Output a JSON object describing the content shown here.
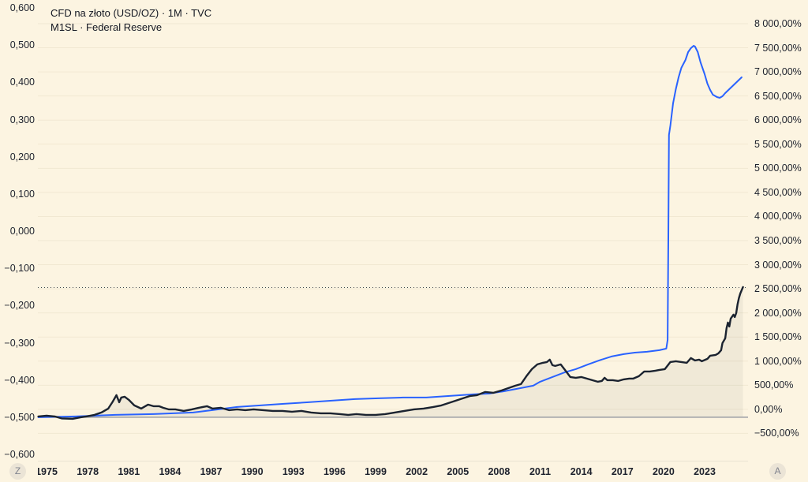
{
  "legend": {
    "line1": "CFD na złoto (USD/OZ) · 1M · TVC",
    "line2": "M1SL · Federal Reserve"
  },
  "scale_buttons": {
    "left": "Z",
    "right": "A"
  },
  "colors": {
    "background": "#fcf4e1",
    "grid": "#f1e8d2",
    "axis_text": "#1e222d",
    "gold_line": "#1b2330",
    "gold_fill": "rgba(25,32,45,0.05)",
    "m1_line": "#2962ff",
    "baseline": "#9b9ea5",
    "last_value_line": "#40434a"
  },
  "chart_data": {
    "type": "line",
    "title": "CFD na złoto (USD/OZ) · 1M · TVC",
    "subtitle": "M1SL · Federal Reserve",
    "grid": true,
    "legend_position": "top-left",
    "x_axis": {
      "ticks": [
        "1975",
        "1978",
        "1981",
        "1984",
        "1987",
        "1990",
        "1993",
        "1996",
        "1999",
        "2002",
        "2005",
        "2008",
        "2011",
        "2014",
        "2017",
        "2020",
        "2023"
      ]
    },
    "left_axis": {
      "ticks": [
        "0,600",
        "0,500",
        "0,400",
        "0,300",
        "0,200",
        "0,100",
        "0,000",
        "−0,100",
        "−0,200",
        "−0,300",
        "−0,400",
        "−0,500",
        "−0,600"
      ],
      "range": [
        -0.6,
        0.6
      ]
    },
    "right_axis": {
      "ticks": [
        "8 000,00%",
        "7 500,00%",
        "7 000,00%",
        "6 500,00%",
        "6 000,00%",
        "5 500,00%",
        "5 000,00%",
        "4 500,00%",
        "4 000,00%",
        "3 500,00%",
        "3 000,00%",
        "2 500,00%",
        "2 000,00%",
        "1 500,00%",
        "1 000,00%",
        "500,00%",
        "0,00%",
        "−500,00%"
      ],
      "range_pct": [
        -500,
        8000
      ]
    },
    "baseline_left_value": -0.5,
    "last_value_pct": 2690,
    "series": [
      {
        "name": "CFD na złoto (USD/OZ)",
        "unit": "percent_change",
        "points": [
          [
            1974.4,
            16
          ],
          [
            1975.0,
            33
          ],
          [
            1975.6,
            16
          ],
          [
            1976.1,
            -25
          ],
          [
            1976.9,
            -33
          ],
          [
            1977.5,
            0
          ],
          [
            1977.9,
            16
          ],
          [
            1978.5,
            49
          ],
          [
            1979.0,
            98
          ],
          [
            1979.5,
            180
          ],
          [
            1979.8,
            311
          ],
          [
            1980.1,
            458
          ],
          [
            1980.3,
            311
          ],
          [
            1980.45,
            409
          ],
          [
            1980.7,
            425
          ],
          [
            1981.0,
            360
          ],
          [
            1981.4,
            245
          ],
          [
            1981.9,
            180
          ],
          [
            1982.4,
            262
          ],
          [
            1982.8,
            229
          ],
          [
            1983.2,
            229
          ],
          [
            1983.5,
            196
          ],
          [
            1983.9,
            164
          ],
          [
            1984.4,
            164
          ],
          [
            1985.0,
            131
          ],
          [
            1985.6,
            164
          ],
          [
            1986.1,
            196
          ],
          [
            1986.7,
            229
          ],
          [
            1987.1,
            180
          ],
          [
            1987.7,
            196
          ],
          [
            1988.3,
            147
          ],
          [
            1988.9,
            164
          ],
          [
            1989.5,
            147
          ],
          [
            1990.1,
            164
          ],
          [
            1990.8,
            147
          ],
          [
            1991.5,
            131
          ],
          [
            1992.2,
            131
          ],
          [
            1992.9,
            115
          ],
          [
            1993.6,
            131
          ],
          [
            1994.3,
            98
          ],
          [
            1995.0,
            82
          ],
          [
            1995.7,
            82
          ],
          [
            1996.4,
            65
          ],
          [
            1997.0,
            49
          ],
          [
            1997.6,
            65
          ],
          [
            1998.3,
            49
          ],
          [
            1999.0,
            49
          ],
          [
            1999.7,
            65
          ],
          [
            2000.4,
            98
          ],
          [
            2001.1,
            131
          ],
          [
            2001.8,
            164
          ],
          [
            2002.5,
            180
          ],
          [
            2003.2,
            213
          ],
          [
            2003.8,
            245
          ],
          [
            2004.5,
            311
          ],
          [
            2005.2,
            376
          ],
          [
            2005.9,
            442
          ],
          [
            2006.4,
            458
          ],
          [
            2007.0,
            524
          ],
          [
            2007.6,
            507
          ],
          [
            2008.2,
            556
          ],
          [
            2008.7,
            605
          ],
          [
            2009.2,
            654
          ],
          [
            2009.6,
            687
          ],
          [
            2010.0,
            851
          ],
          [
            2010.4,
            998
          ],
          [
            2010.8,
            1096
          ],
          [
            2011.2,
            1129
          ],
          [
            2011.5,
            1145
          ],
          [
            2011.7,
            1194
          ],
          [
            2011.9,
            1080
          ],
          [
            2012.1,
            1063
          ],
          [
            2012.5,
            1096
          ],
          [
            2012.9,
            949
          ],
          [
            2013.2,
            834
          ],
          [
            2013.6,
            818
          ],
          [
            2014.0,
            834
          ],
          [
            2014.4,
            802
          ],
          [
            2014.8,
            769
          ],
          [
            2015.2,
            736
          ],
          [
            2015.5,
            752
          ],
          [
            2015.7,
            818
          ],
          [
            2015.9,
            769
          ],
          [
            2016.3,
            769
          ],
          [
            2016.7,
            752
          ],
          [
            2017.1,
            785
          ],
          [
            2017.5,
            802
          ],
          [
            2017.8,
            802
          ],
          [
            2018.2,
            851
          ],
          [
            2018.6,
            949
          ],
          [
            2019.0,
            949
          ],
          [
            2019.4,
            965
          ],
          [
            2019.7,
            982
          ],
          [
            2020.1,
            998
          ],
          [
            2020.5,
            1145
          ],
          [
            2020.9,
            1162
          ],
          [
            2021.3,
            1145
          ],
          [
            2021.7,
            1129
          ],
          [
            2022.0,
            1227
          ],
          [
            2022.3,
            1178
          ],
          [
            2022.6,
            1194
          ],
          [
            2022.8,
            1162
          ],
          [
            2023.2,
            1211
          ],
          [
            2023.4,
            1276
          ],
          [
            2023.8,
            1293
          ],
          [
            2024.0,
            1325
          ],
          [
            2024.2,
            1391
          ],
          [
            2024.3,
            1538
          ],
          [
            2024.5,
            1636
          ],
          [
            2024.6,
            1849
          ],
          [
            2024.7,
            1963
          ],
          [
            2024.8,
            1882
          ],
          [
            2024.9,
            2045
          ],
          [
            2025.1,
            2127
          ],
          [
            2025.2,
            2078
          ],
          [
            2025.3,
            2160
          ],
          [
            2025.4,
            2340
          ],
          [
            2025.5,
            2470
          ],
          [
            2025.6,
            2568
          ],
          [
            2025.7,
            2634
          ],
          [
            2025.8,
            2700
          ]
        ]
      },
      {
        "name": "M1SL",
        "unit": "percent_change",
        "points": [
          [
            1974.4,
            0
          ],
          [
            1977.1,
            16
          ],
          [
            1980.0,
            49
          ],
          [
            1982.8,
            65
          ],
          [
            1985.7,
            98
          ],
          [
            1987.1,
            147
          ],
          [
            1988.9,
            213
          ],
          [
            1990.6,
            245
          ],
          [
            1992.3,
            278
          ],
          [
            1994.1,
            311
          ],
          [
            1995.8,
            344
          ],
          [
            1997.5,
            376
          ],
          [
            1999.2,
            393
          ],
          [
            2001.0,
            409
          ],
          [
            2002.7,
            409
          ],
          [
            2004.4,
            442
          ],
          [
            2006.1,
            474
          ],
          [
            2007.3,
            491
          ],
          [
            2008.4,
            540
          ],
          [
            2009.6,
            605
          ],
          [
            2010.5,
            654
          ],
          [
            2011.0,
            736
          ],
          [
            2011.9,
            834
          ],
          [
            2012.8,
            932
          ],
          [
            2013.6,
            998
          ],
          [
            2014.5,
            1096
          ],
          [
            2015.3,
            1178
          ],
          [
            2016.2,
            1260
          ],
          [
            2017.1,
            1309
          ],
          [
            2017.9,
            1341
          ],
          [
            2018.8,
            1358
          ],
          [
            2019.7,
            1391
          ],
          [
            2020.2,
            1423
          ],
          [
            2020.3,
            1603
          ],
          [
            2020.35,
            3730
          ],
          [
            2020.4,
            5857
          ],
          [
            2020.5,
            6053
          ],
          [
            2020.7,
            6511
          ],
          [
            2020.9,
            6806
          ],
          [
            2021.1,
            7051
          ],
          [
            2021.3,
            7247
          ],
          [
            2021.6,
            7411
          ],
          [
            2021.8,
            7575
          ],
          [
            2022.0,
            7657
          ],
          [
            2022.2,
            7706
          ],
          [
            2022.3,
            7690
          ],
          [
            2022.5,
            7575
          ],
          [
            2022.7,
            7362
          ],
          [
            2023.0,
            7117
          ],
          [
            2023.2,
            6920
          ],
          [
            2023.4,
            6789
          ],
          [
            2023.6,
            6692
          ],
          [
            2023.9,
            6642
          ],
          [
            2024.1,
            6626
          ],
          [
            2024.3,
            6659
          ],
          [
            2024.5,
            6724
          ],
          [
            2024.8,
            6806
          ],
          [
            2025.1,
            6888
          ],
          [
            2025.4,
            6970
          ],
          [
            2025.7,
            7051
          ]
        ]
      }
    ]
  }
}
